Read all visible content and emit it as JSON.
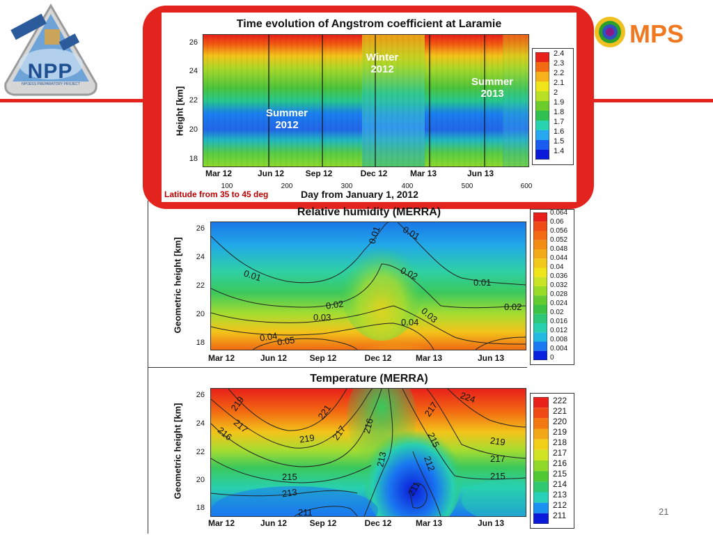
{
  "slide": {
    "page_number": "21",
    "accent_color": "#e3231d"
  },
  "logos": {
    "npp": {
      "text": "NPP",
      "subtext": "NPOESS PREPARATORY PROJECT"
    },
    "mps": {
      "text": "MPS"
    }
  },
  "chart_data": [
    {
      "type": "heatmap",
      "title": "Time evolution of Angstrom coefficient at Laramie",
      "ylabel": "Height [km]",
      "xlabel": "Day from January 1, 2012",
      "y_ticks": [
        "26",
        "24",
        "22",
        "20",
        "18"
      ],
      "ylim": [
        17.3,
        26.5
      ],
      "x_month_ticks": [
        "Mar 12",
        "Jun 12",
        "Sep 12",
        "Dec 12",
        "Mar 13",
        "Jun 13"
      ],
      "x_day_ticks": [
        "100",
        "200",
        "300",
        "400",
        "500",
        "600"
      ],
      "xlim": [
        40,
        600
      ],
      "colorbar": [
        "2.4",
        "2.3",
        "2.2",
        "2.1",
        "2",
        "1.9",
        "1.8",
        "1.7",
        "1.6",
        "1.5",
        "1.4"
      ],
      "annotations": [
        {
          "text": [
            "Winter",
            "2012"
          ]
        },
        {
          "text": [
            "Summer",
            "2013"
          ]
        },
        {
          "text": [
            "Summer",
            "2012"
          ]
        }
      ],
      "note": "Latitude from 35 to 45 deg",
      "note_color": "#c00000"
    },
    {
      "type": "heatmap",
      "title": "Relative humidity (MERRA)",
      "ylabel": "Geometric height [km]",
      "y_ticks": [
        "26",
        "24",
        "22",
        "20",
        "18"
      ],
      "ylim": [
        17.3,
        26.5
      ],
      "x_month_ticks": [
        "Mar 12",
        "Jun 12",
        "Sep 12",
        "Dec 12",
        "Mar 13",
        "Jun 13"
      ],
      "colorbar": [
        "0.064",
        "0.06",
        "0.056",
        "0.052",
        "0.048",
        "0.044",
        "0.04",
        "0.036",
        "0.032",
        "0.028",
        "0.024",
        "0.02",
        "0.016",
        "0.012",
        "0.008",
        "0.004",
        "0"
      ],
      "contour_labels": [
        "0.01",
        "0.01",
        "0.01",
        "0.01",
        "0.02",
        "0.02",
        "0.02",
        "0.03",
        "0.03",
        "0.04",
        "0.04",
        "0.05"
      ]
    },
    {
      "type": "heatmap",
      "title": "Temperature (MERRA)",
      "ylabel": "Geometric height [km]",
      "y_ticks": [
        "26",
        "24",
        "22",
        "20",
        "18"
      ],
      "ylim": [
        17.3,
        26.5
      ],
      "x_month_ticks": [
        "Mar 12",
        "Jun 12",
        "Sep 12",
        "Dec 12",
        "Mar 13",
        "Jun 13"
      ],
      "colorbar": [
        "222",
        "221",
        "220",
        "219",
        "218",
        "217",
        "216",
        "215",
        "214",
        "213",
        "212",
        "211"
      ],
      "contour_labels": [
        "219",
        "221",
        "217",
        "219",
        "217",
        "216",
        "215",
        "213",
        "216",
        "213",
        "211",
        "217",
        "215",
        "212",
        "211",
        "224",
        "219",
        "217",
        "215"
      ]
    }
  ]
}
